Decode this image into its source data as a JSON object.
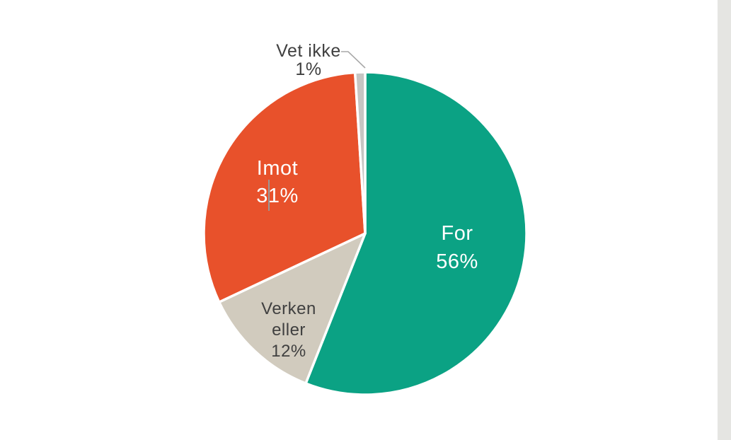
{
  "page": {
    "background_color": "#FFFFFF",
    "right_strip_color": "#E5E5E2"
  },
  "chart_data": {
    "type": "pie",
    "title": "",
    "unit": "%",
    "legend": "none",
    "start_angle_deg": 0,
    "direction": "clockwise",
    "categories": [
      "For",
      "Verken eller",
      "Imot",
      "Vet ikke"
    ],
    "values": [
      56,
      12,
      31,
      1
    ],
    "slices": [
      {
        "name": "For",
        "value": 56,
        "color": "#0BA284",
        "label_lines": [
          "For",
          "56%"
        ],
        "label_text": "For 56%",
        "label_color": "#FFFFFF",
        "label_position": "inside"
      },
      {
        "name": "Verken eller",
        "value": 12,
        "color": "#D1CBBE",
        "label_lines": [
          "Verken",
          "eller",
          "12%"
        ],
        "label_text": "Verken eller 12%",
        "label_color": "#404040",
        "label_position": "inside"
      },
      {
        "name": "Imot",
        "value": 31,
        "color": "#E8512B",
        "label_lines": [
          "Imot",
          "31%"
        ],
        "label_text": "Imot 31%",
        "label_color": "#FFFFFF",
        "label_position": "inside",
        "leader_line": true
      },
      {
        "name": "Vet ikke",
        "value": 1,
        "color": "#C6C6C3",
        "label_lines": [
          "Vet ikke",
          "1%"
        ],
        "label_text": "Vet ikke 1%",
        "label_color": "#404040",
        "label_position": "outside",
        "leader_line": true
      }
    ],
    "leader_line_color": "#A8A8A8"
  }
}
